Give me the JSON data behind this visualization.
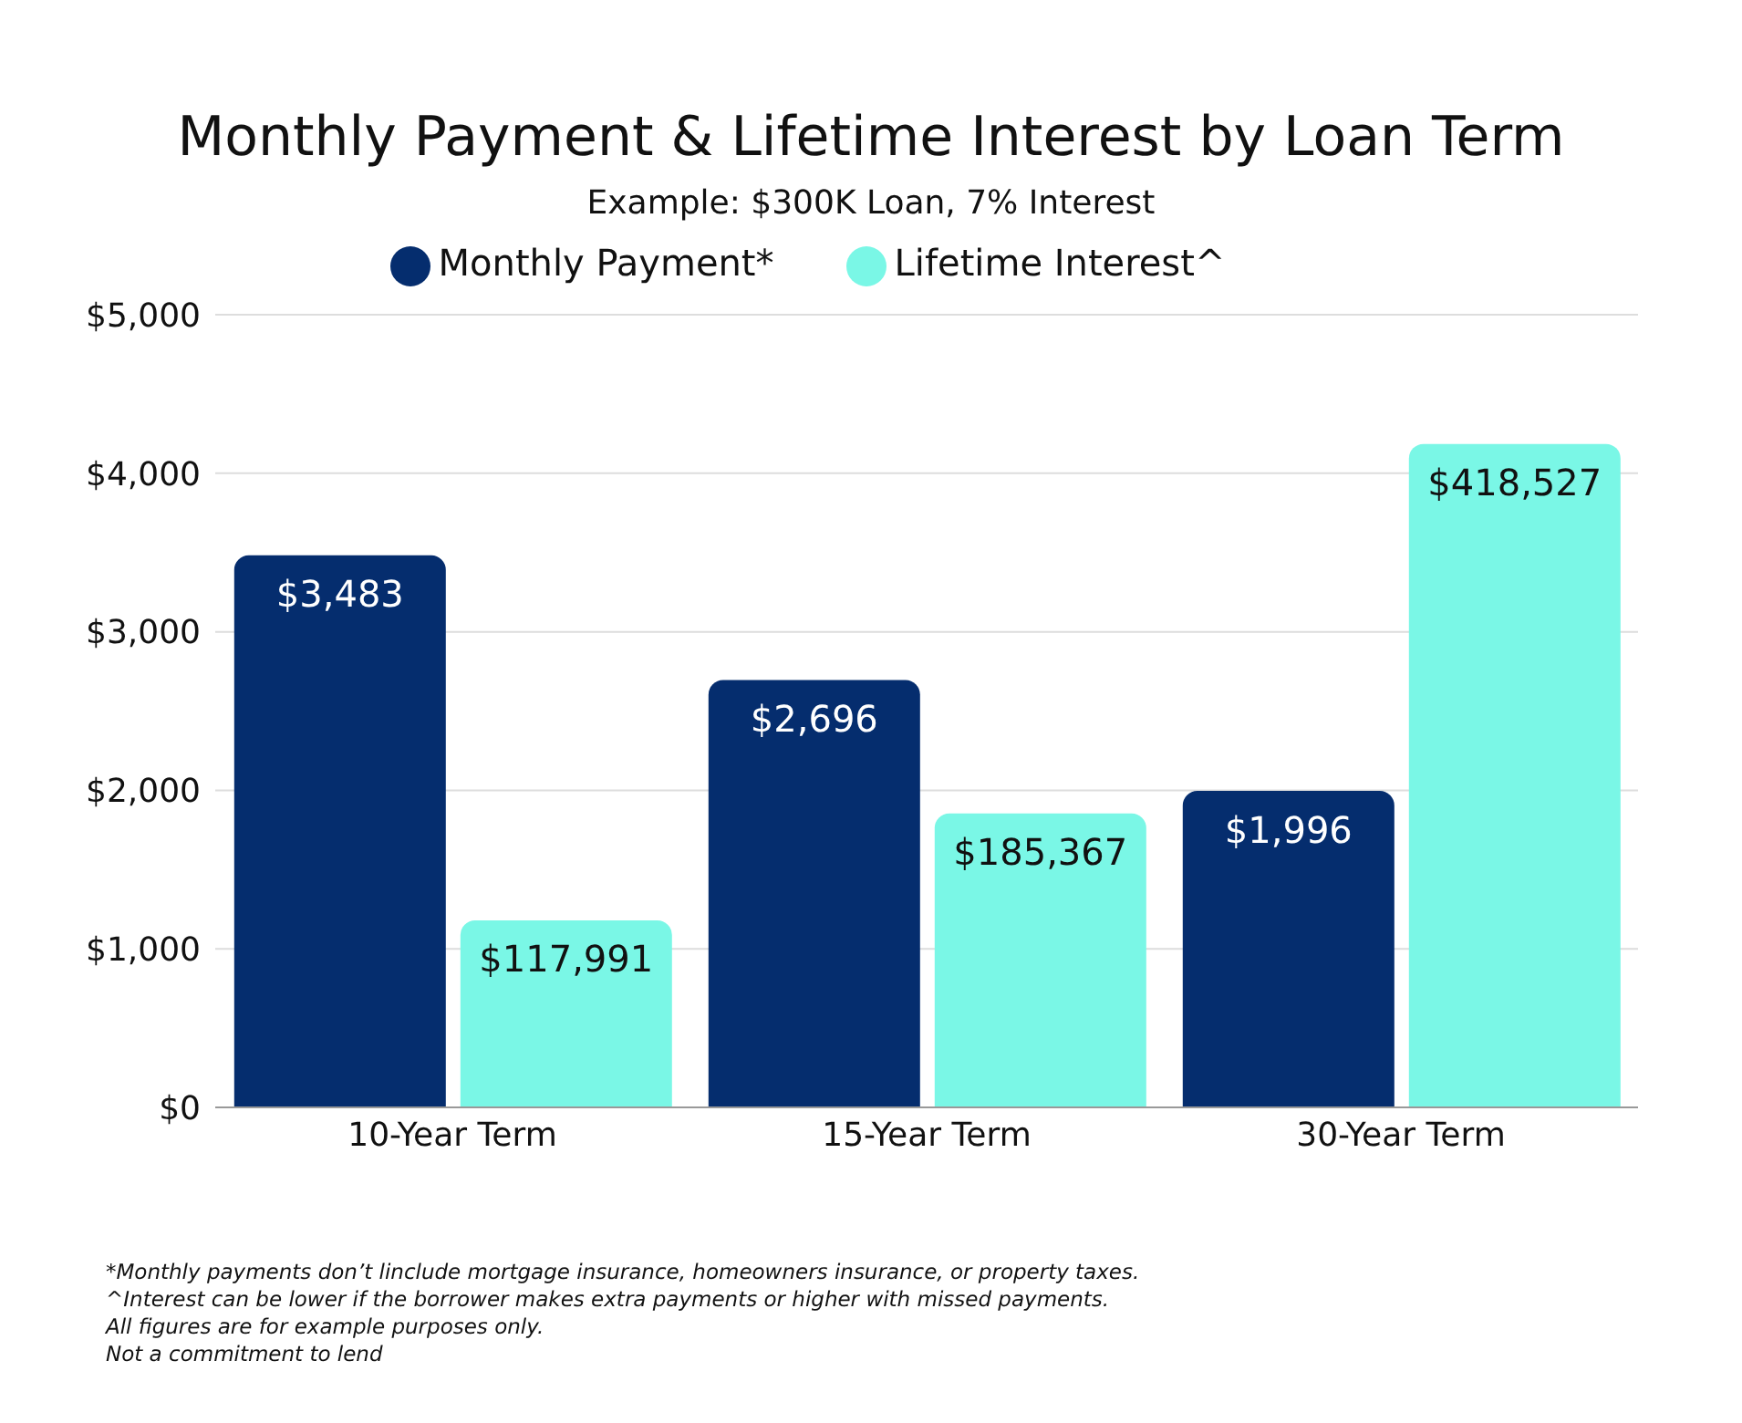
{
  "chart_data": {
    "type": "bar",
    "title": "Monthly Payment & Lifetime Interest by Loan Term",
    "subtitle": "Example: $300K Loan, 7% Interest",
    "categories": [
      "10-Year Term",
      "15-Year Term",
      "30-Year Term"
    ],
    "series": [
      {
        "name": "Monthly Payment*",
        "color": "#052d6e",
        "values": [
          3483,
          2696,
          1996
        ],
        "value_labels": [
          "$3,483",
          "$2,696",
          "$1,996"
        ]
      },
      {
        "name": "Lifetime Interest^",
        "color": "#7af7e6",
        "values": [
          117991,
          185367,
          418527
        ],
        "value_labels": [
          "$117,991",
          "$185,367",
          "$418,527"
        ],
        "axis": "y2"
      }
    ],
    "ylim": [
      0,
      5000
    ],
    "yticks": [
      {
        "value": 0,
        "label": "$0"
      },
      {
        "value": 1000,
        "label": "$1,000"
      },
      {
        "value": 2000,
        "label": "$2,000"
      },
      {
        "value": 3000,
        "label": "$3,000"
      },
      {
        "value": 4000,
        "label": "$4,000"
      },
      {
        "value": 5000,
        "label": "$5,000"
      }
    ],
    "y2lim": [
      0,
      500000
    ],
    "tick_labels": "y",
    "grid": "y",
    "legend": "top",
    "annotations": [
      "*Monthly payments don’t linclude mortgage insurance, homeowners insurance, or property taxes.",
      "^Interest can be lower if the borrower makes extra payments or higher with missed payments.",
      "All figures are for example purposes only.",
      "Not a commitment to lend"
    ]
  }
}
